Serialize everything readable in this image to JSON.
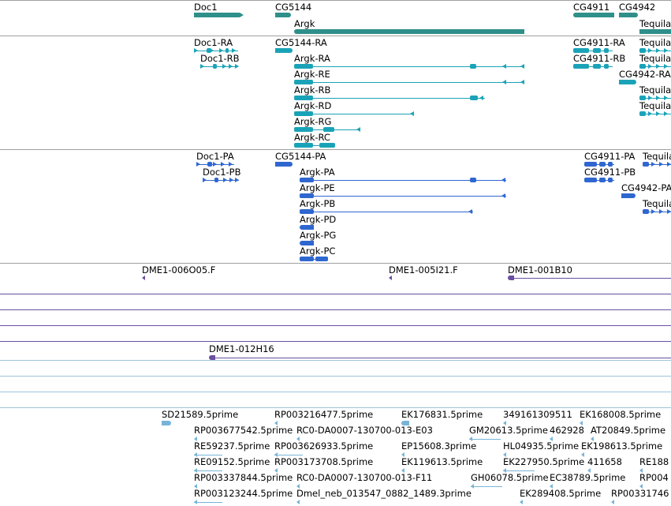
{
  "colors": {
    "gene": "#2f8f8a",
    "transcript": "#1aa3b8",
    "protein": "#2f67d0",
    "clone": "#6b4fa0",
    "est": "#78b4d8",
    "separator_gray": "#a0a0a0",
    "separator_blue": "#9fc4da"
  },
  "tracks": {
    "genes": [
      {
        "label": "Doc1"
      },
      {
        "label": "CG5144"
      },
      {
        "label": "Argk"
      },
      {
        "label": "CG4911"
      },
      {
        "label": "CG4942"
      },
      {
        "label": "Tequila"
      }
    ],
    "transcripts": [
      {
        "label": "Doc1-RA"
      },
      {
        "label": "Doc1-RB"
      },
      {
        "label": "CG5144-RA"
      },
      {
        "label": "Argk-RA"
      },
      {
        "label": "Argk-RE"
      },
      {
        "label": "Argk-RB"
      },
      {
        "label": "Argk-RD"
      },
      {
        "label": "Argk-RG"
      },
      {
        "label": "Argk-RC"
      },
      {
        "label": "CG4911-RA"
      },
      {
        "label": "CG4911-RB"
      },
      {
        "label": "CG4942-RA"
      },
      {
        "label": "Tequila"
      },
      {
        "label": "Tequila"
      },
      {
        "label": "Tequila"
      },
      {
        "label": "Tequila"
      }
    ],
    "proteins": [
      {
        "label": "Doc1-PA"
      },
      {
        "label": "Doc1-PB"
      },
      {
        "label": "CG5144-PA"
      },
      {
        "label": "Argk-PA"
      },
      {
        "label": "Argk-PE"
      },
      {
        "label": "Argk-PB"
      },
      {
        "label": "Argk-PD"
      },
      {
        "label": "Argk-PG"
      },
      {
        "label": "Argk-PC"
      },
      {
        "label": "CG4911-PA"
      },
      {
        "label": "CG4911-PB"
      },
      {
        "label": "CG4942-PA"
      },
      {
        "label": "Tequila"
      },
      {
        "label": "Tequila"
      }
    ],
    "clones": [
      {
        "label": "DME1-006O05.F"
      },
      {
        "label": "DME1-005I21.F"
      },
      {
        "label": "DME1-001B10"
      },
      {
        "label": "DME1-012H16"
      }
    ],
    "ests": [
      {
        "label": "SD21589.5prime"
      },
      {
        "label": "RP003216477.5prime"
      },
      {
        "label": "EK176831.5prime"
      },
      {
        "label": "349161309511"
      },
      {
        "label": "EK168008.5prime"
      },
      {
        "label": "RP003677542.5prime"
      },
      {
        "label": "RC0-DA0007-130700-013-E03"
      },
      {
        "label": "GM20613.5prime"
      },
      {
        "label": "462928"
      },
      {
        "label": "AT20849.5prime"
      },
      {
        "label": "RE59237.5prime"
      },
      {
        "label": "RP003626933.5prime"
      },
      {
        "label": "EP15608.3prime"
      },
      {
        "label": "HL04935.5prime"
      },
      {
        "label": "EK198613.5prime"
      },
      {
        "label": "RE09152.5prime"
      },
      {
        "label": "RP003173708.5prime"
      },
      {
        "label": "EK119613.5prime"
      },
      {
        "label": "EK227950.5prime"
      },
      {
        "label": "411658"
      },
      {
        "label": "RE188"
      },
      {
        "label": "RP003337844.5prime"
      },
      {
        "label": "RC0-DA0007-130700-013-F11"
      },
      {
        "label": "GH06078.5prime"
      },
      {
        "label": "EC38789.5prime"
      },
      {
        "label": "RP004"
      },
      {
        "label": "RP003123244.5prime"
      },
      {
        "label": "Dmel_neb_013547_0882_1489.3prime"
      },
      {
        "label": "EK289408.5prime"
      },
      {
        "label": "RP00331746"
      }
    ]
  }
}
